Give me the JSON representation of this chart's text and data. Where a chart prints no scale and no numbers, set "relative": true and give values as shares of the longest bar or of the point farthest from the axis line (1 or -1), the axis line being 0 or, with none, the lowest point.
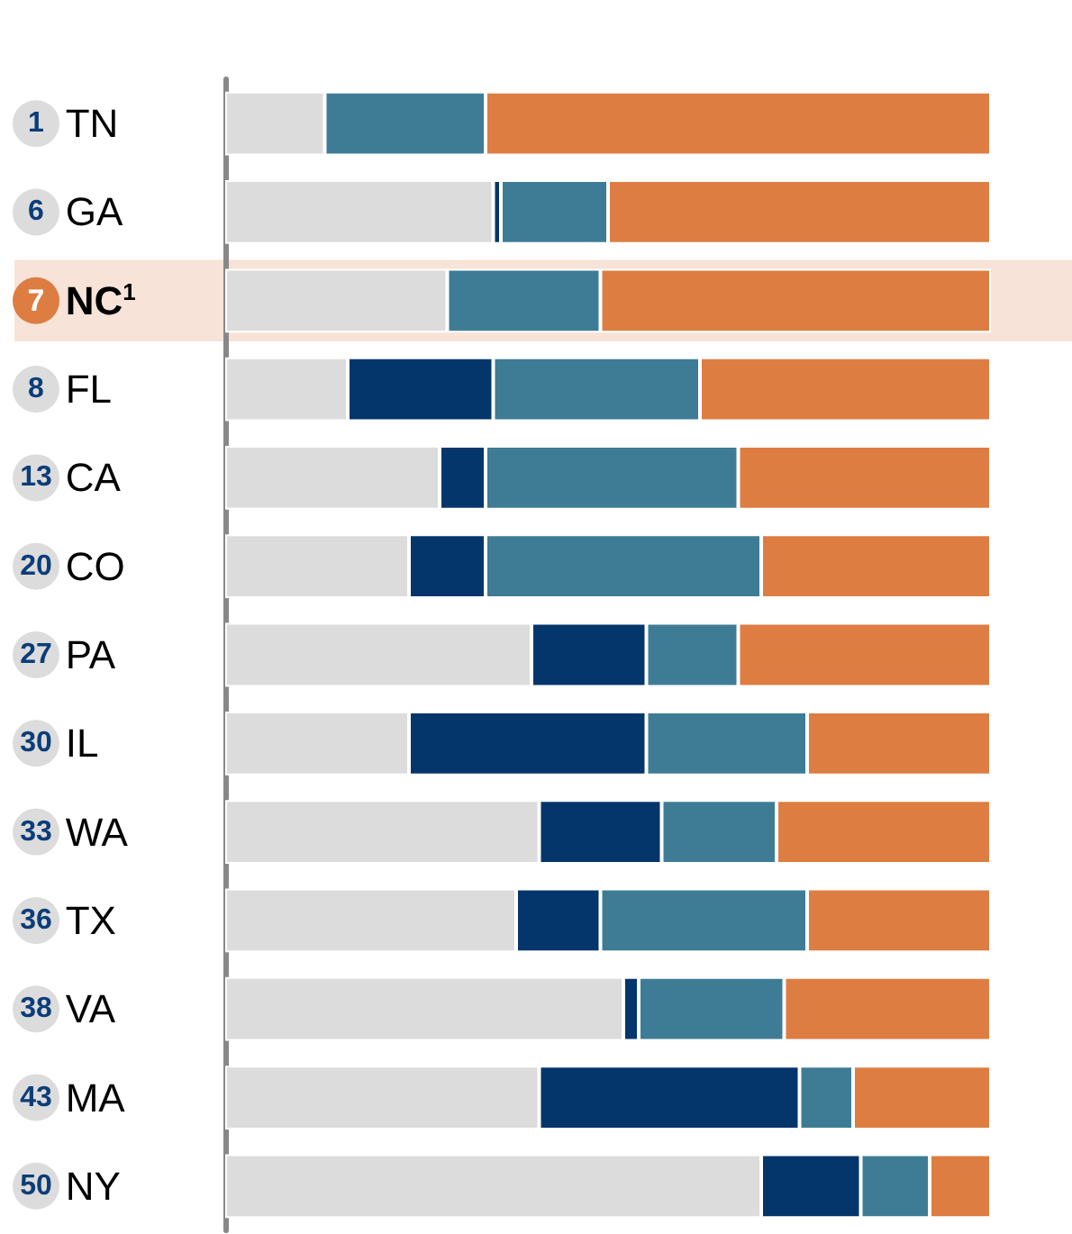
{
  "chart_data": {
    "type": "bar",
    "orientation": "horizontal",
    "stacked": true,
    "relative": true,
    "categories": [
      "1 TN",
      "6 GA",
      "7 NC$^{1}$",
      "8 FL",
      "13 CA",
      "20 CO",
      "27 PA",
      "30 IL",
      "33 WA",
      "36 TX",
      "38 VA",
      "43 MA",
      "50 NY"
    ],
    "series": [
      {
        "color": "#dcdcdc",
        "values": [
          0.13,
          0.35,
          0.29,
          0.16,
          0.28,
          0.24,
          0.4,
          0.24,
          0.41,
          0.38,
          0.52,
          0.41,
          0.7
        ]
      },
      {
        "color": "#04366b",
        "values": [
          0,
          0.01,
          0,
          0.19,
          0.06,
          0.1,
          0.15,
          0.31,
          0.16,
          0.11,
          0.02,
          0.34,
          0.13
        ]
      },
      {
        "color": "#3e7c96",
        "values": [
          0.21,
          0.14,
          0.2,
          0.27,
          0.33,
          0.36,
          0.12,
          0.21,
          0.15,
          0.27,
          0.19,
          0.07,
          0.09
        ]
      },
      {
        "color": "#de7d42",
        "values": [
          0.66,
          0.5,
          0.51,
          0.38,
          0.33,
          0.3,
          0.33,
          0.24,
          0.28,
          0.24,
          0.27,
          0.18,
          0.08
        ]
      }
    ],
    "bands": [
      {
        "axis": "y",
        "from": "7 NC$^{1}$",
        "to": "7 NC$^{1}$",
        "color": "#f7e3d7"
      }
    ]
  }
}
